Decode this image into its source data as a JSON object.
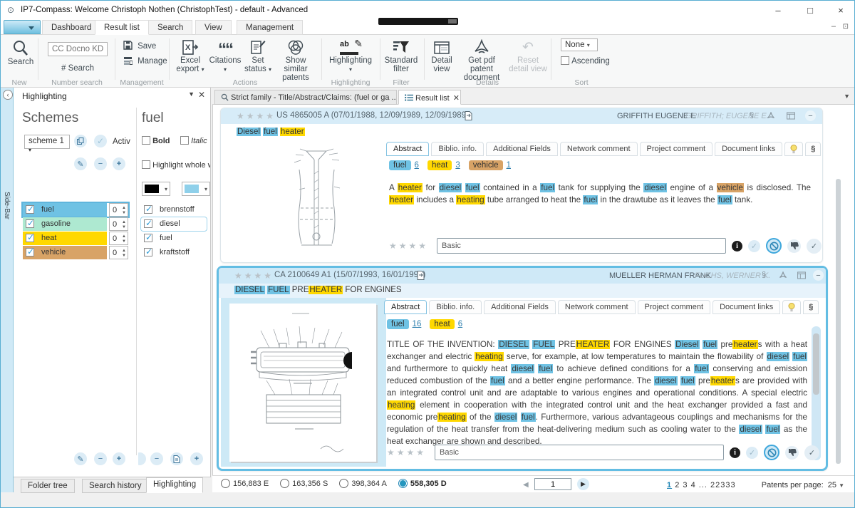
{
  "window": {
    "title": "IP7-Compass: Welcome Christoph Nothen (ChristophTest) - default - Advanced"
  },
  "highlight_colors": {
    "fuel": "#6FC2E4",
    "heat": "#FFD800",
    "vehicle": "#D8A366",
    "gasoline": "#AEE9D1"
  },
  "ribbon": {
    "tabs": [
      {
        "label": "Dashboard"
      },
      {
        "label": "Result list"
      },
      {
        "label": "Search"
      },
      {
        "label": "View"
      },
      {
        "label": "Management"
      }
    ],
    "new": {
      "group_label": "New",
      "search_label": "Search"
    },
    "number_search": {
      "group_label": "Number search",
      "placeholder": "CC Docno KD...",
      "search_label": "# Search"
    },
    "management": {
      "group_label": "Management",
      "save_label": "Save",
      "manage_label": "Manage"
    },
    "actions": {
      "group_label": "Actions",
      "excel_line1": "Excel",
      "excel_line2": "export",
      "citations_label": "Citations",
      "set_line1": "Set",
      "set_line2": "status",
      "similar_line1": "Show similar",
      "similar_line2": "patents"
    },
    "highlight_group": {
      "group_label": "Highlighting",
      "button_label": "Highlighting"
    },
    "filter": {
      "group_label": "Filter",
      "line1": "Standard",
      "line2": "filter"
    },
    "details": {
      "group_label": "Details",
      "detail_line1": "Detail",
      "detail_line2": "view",
      "pdf_line1": "Get pdf patent",
      "pdf_line2": "document",
      "reset_line1": "Reset",
      "reset_line2": "detail view"
    },
    "sort": {
      "group_label": "Sort",
      "order_value": "None",
      "ascending_label": "Ascending"
    }
  },
  "sidebar": {
    "label": "Side-Bar"
  },
  "panel": {
    "title": "Highlighting",
    "schemes": {
      "heading": "Schemes",
      "scheme_value": "scheme 1",
      "active_label": "Activ",
      "items": [
        {
          "label": "fuel",
          "count": "0",
          "color": "#6FC2E4"
        },
        {
          "label": "gasoline",
          "count": "0",
          "color": "#AEE9D1"
        },
        {
          "label": "heat",
          "count": "0",
          "color": "#FFD800"
        },
        {
          "label": "vehicle",
          "count": "0",
          "color": "#D8A366"
        }
      ]
    },
    "keywords": {
      "heading": "fuel",
      "bold": "Bold",
      "italic": "Italic",
      "whole_word": "Highlight whole w",
      "font_color": "#000000",
      "highlight_color": "#8FD0EA",
      "items": [
        {
          "label": "brennstoff"
        },
        {
          "label": "diesel"
        },
        {
          "label": "fuel"
        },
        {
          "label": "kraftstoff"
        }
      ]
    },
    "tabs": [
      {
        "label": "Folder tree"
      },
      {
        "label": "Search history"
      },
      {
        "label": "Highlighting"
      }
    ]
  },
  "main": {
    "doc_tabs": [
      {
        "label": "Strict family - Title/Abstract/Claims: (fuel or ga ..."
      },
      {
        "label": "Result list"
      }
    ],
    "patents": [
      {
        "id_line": "US 4865005 A (07/01/1988, 12/09/1989, 12/09/1989)",
        "applicant": "GRIFFITH EUGENE E",
        "inventor": "GRIFFITH; EUGENE E.",
        "title_segments": [
          {
            "t": "Diesel",
            "h": "fuel"
          },
          {
            "t": " "
          },
          {
            "t": "fuel",
            "h": "fuel"
          },
          {
            "t": " "
          },
          {
            "t": "heater",
            "h": "heat"
          }
        ],
        "tabs": [
          {
            "label": "Abstract"
          },
          {
            "label": "Biblio. info."
          },
          {
            "label": "Additional Fields"
          },
          {
            "label": "Network comment"
          },
          {
            "label": "Project comment"
          },
          {
            "label": "Document links"
          }
        ],
        "chips": [
          {
            "label": "fuel",
            "count": "6"
          },
          {
            "label": "heat",
            "count": "3"
          },
          {
            "label": "vehicle",
            "count": "1"
          }
        ],
        "abstract_segments": [
          {
            "t": "A "
          },
          {
            "t": "heater",
            "h": "heat"
          },
          {
            "t": " for "
          },
          {
            "t": "diesel",
            "h": "fuel"
          },
          {
            "t": " "
          },
          {
            "t": "fuel",
            "h": "fuel"
          },
          {
            "t": " contained in a "
          },
          {
            "t": "fuel",
            "h": "fuel"
          },
          {
            "t": " tank for supplying the "
          },
          {
            "t": "diesel",
            "h": "fuel"
          },
          {
            "t": " engine of a "
          },
          {
            "t": "vehicle",
            "h": "vehicle"
          },
          {
            "t": " is disclosed. The "
          },
          {
            "t": "heater",
            "h": "heat"
          },
          {
            "t": " includes a "
          },
          {
            "t": "heating",
            "h": "heat"
          },
          {
            "t": " tube arranged to heat the "
          },
          {
            "t": "fuel",
            "h": "fuel"
          },
          {
            "t": " in the drawtube as it leaves the "
          },
          {
            "t": "fuel",
            "h": "fuel"
          },
          {
            "t": " tank."
          }
        ],
        "rating_value": "Basic"
      },
      {
        "id_line": "CA 2100649 A1 (15/07/1993, 16/01/1994)",
        "applicant": "MUELLER HERMAN FRANK",
        "inventor": "FUCHS, WERNER K.",
        "title_segments": [
          {
            "t": "DIESEL",
            "h": "fuel"
          },
          {
            "t": " "
          },
          {
            "t": "FUEL",
            "h": "fuel"
          },
          {
            "t": " PRE"
          },
          {
            "t": "HEATER",
            "h": "heat"
          },
          {
            "t": " FOR ENGINES"
          }
        ],
        "tabs": [
          {
            "label": "Abstract"
          },
          {
            "label": "Biblio. info."
          },
          {
            "label": "Additional Fields"
          },
          {
            "label": "Network comment"
          },
          {
            "label": "Project comment"
          },
          {
            "label": "Document links"
          }
        ],
        "chips": [
          {
            "label": "fuel",
            "count": "16"
          },
          {
            "label": "heat",
            "count": "6"
          }
        ],
        "abstract_segments": [
          {
            "t": "TITLE OF THE INVENTION: "
          },
          {
            "t": "DIESEL",
            "h": "fuel"
          },
          {
            "t": " "
          },
          {
            "t": "FUEL",
            "h": "fuel"
          },
          {
            "t": " PRE"
          },
          {
            "t": "HEATER",
            "h": "heat"
          },
          {
            "t": " FOR ENGINES "
          },
          {
            "t": "Diesel",
            "h": "fuel"
          },
          {
            "t": " "
          },
          {
            "t": "fuel",
            "h": "fuel"
          },
          {
            "t": " pre"
          },
          {
            "t": "heater",
            "h": "heat"
          },
          {
            "t": "s with a heat exchanger and electric "
          },
          {
            "t": "heating",
            "h": "heat"
          },
          {
            "t": " serve, for example, at low temperatures to maintain the flowability of "
          },
          {
            "t": "diesel",
            "h": "fuel"
          },
          {
            "t": " "
          },
          {
            "t": "fuel",
            "h": "fuel"
          },
          {
            "t": " and furthermore to quickly heat "
          },
          {
            "t": "diesel",
            "h": "fuel"
          },
          {
            "t": " "
          },
          {
            "t": "fuel",
            "h": "fuel"
          },
          {
            "t": " to achieve defined conditions for a "
          },
          {
            "t": "fuel",
            "h": "fuel"
          },
          {
            "t": " conserving and emission reduced combustion of the "
          },
          {
            "t": "fuel",
            "h": "fuel"
          },
          {
            "t": " and a better engine performance. The "
          },
          {
            "t": "diesel",
            "h": "fuel"
          },
          {
            "t": " "
          },
          {
            "t": "fuel",
            "h": "fuel"
          },
          {
            "t": " pre"
          },
          {
            "t": "heater",
            "h": "heat"
          },
          {
            "t": "s are provided with an integrated control unit and are adaptable to various engines and operational conditions. A special electric "
          },
          {
            "t": "heating",
            "h": "heat"
          },
          {
            "t": " element in cooperation with the integrated control unit and the heat exchanger provided a fast and economic pre"
          },
          {
            "t": "heating",
            "h": "heat"
          },
          {
            "t": " of the "
          },
          {
            "t": "diesel",
            "h": "fuel"
          },
          {
            "t": " "
          },
          {
            "t": "fuel",
            "h": "fuel"
          },
          {
            "t": ". Furthermore, various advantageous couplings and mechanisms for the regulation of the heat transfer from the heat-delivering medium such as cooling water to the "
          },
          {
            "t": "diesel",
            "h": "fuel"
          },
          {
            "t": " "
          },
          {
            "t": "fuel",
            "h": "fuel"
          },
          {
            "t": " as the heat exchanger are shown and described."
          }
        ],
        "rating_value": "Basic"
      }
    ],
    "footer": {
      "radios": [
        {
          "label": "156,883 E"
        },
        {
          "label": "163,356 S"
        },
        {
          "label": "398,364 A"
        },
        {
          "label": "558,305 D"
        }
      ],
      "selected_radio": "558,305 D",
      "page_value": "1",
      "page_links": [
        {
          "label": "1"
        },
        {
          "label": "2"
        },
        {
          "label": "3"
        },
        {
          "label": "4"
        },
        {
          "label": "..."
        },
        {
          "label": "22333"
        }
      ],
      "per_page_label": "Patents per page:",
      "per_page_value": "25"
    }
  }
}
